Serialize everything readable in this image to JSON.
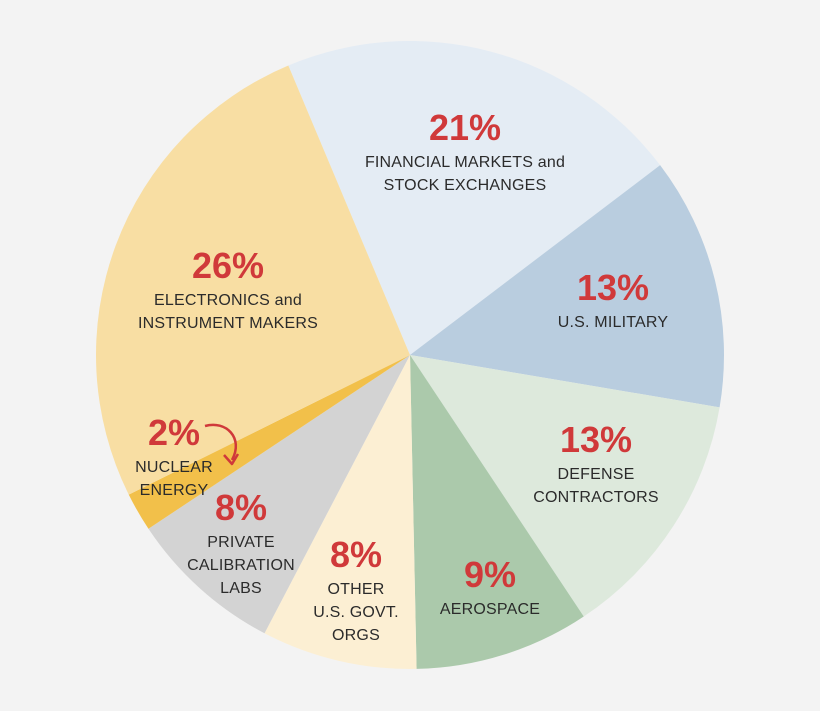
{
  "chart_data": {
    "type": "pie",
    "slices": [
      {
        "value": 21,
        "pct_label": "21%",
        "label_lines": [
          "FINANCIAL MARKETS and",
          "STOCK EXCHANGES"
        ],
        "color": "#e4ecf4"
      },
      {
        "value": 13,
        "pct_label": "13%",
        "label_lines": [
          "U.S. MILITARY"
        ],
        "color": "#b9cddf"
      },
      {
        "value": 13,
        "pct_label": "13%",
        "label_lines": [
          "DEFENSE",
          "CONTRACTORS"
        ],
        "color": "#dde9dc"
      },
      {
        "value": 9,
        "pct_label": "9%",
        "label_lines": [
          "AEROSPACE"
        ],
        "color": "#abc9ab"
      },
      {
        "value": 8,
        "pct_label": "8%",
        "label_lines": [
          "OTHER",
          "U.S. GOVT.",
          "ORGS"
        ],
        "color": "#fcefd3"
      },
      {
        "value": 8,
        "pct_label": "8%",
        "label_lines": [
          "PRIVATE",
          "CALIBRATION",
          "LABS"
        ],
        "color": "#d3d3d3"
      },
      {
        "value": 2,
        "pct_label": "2%",
        "label_lines": [
          "NUCLEAR",
          "ENERGY"
        ],
        "color": "#f2c04a"
      },
      {
        "value": 26,
        "pct_label": "26%",
        "label_lines": [
          "ELECTRONICS and",
          "INSTRUMENT MAKERS"
        ],
        "color": "#f8dea3"
      }
    ],
    "accent_color": "#d0393a"
  }
}
